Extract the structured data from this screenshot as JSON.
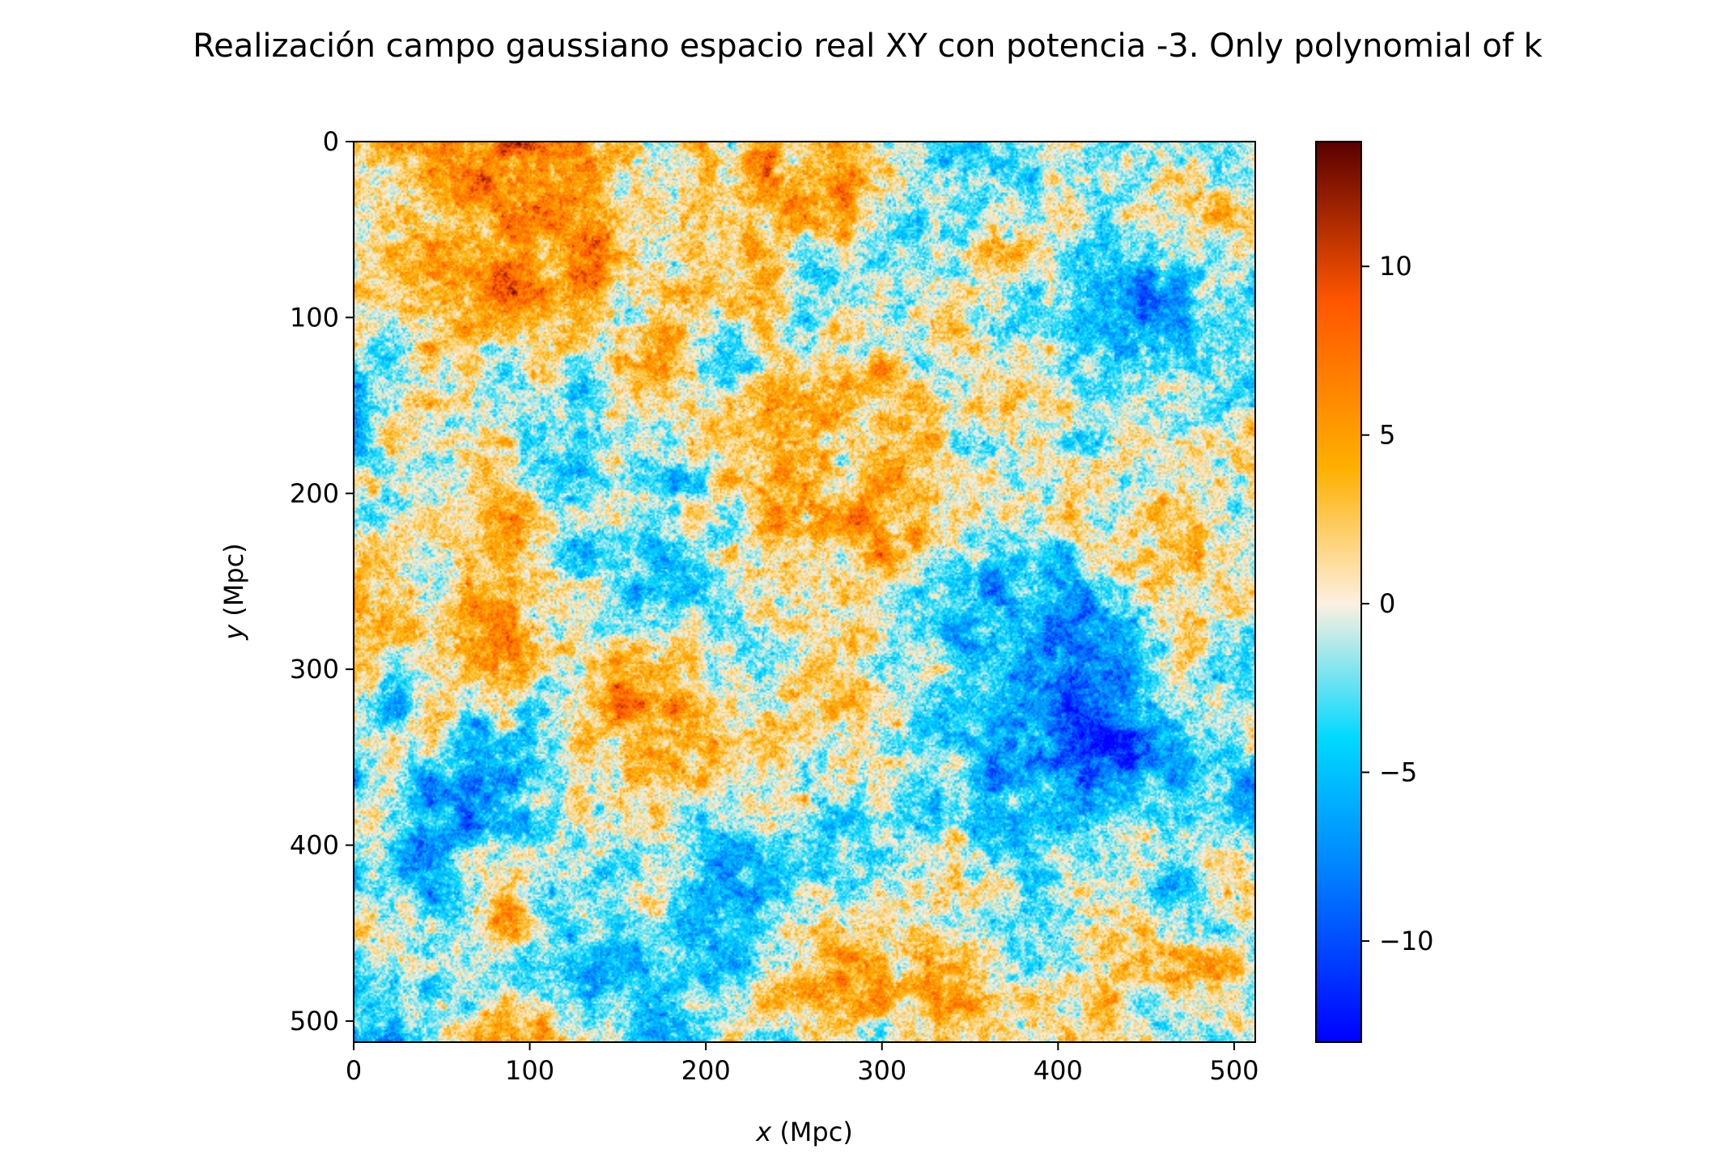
{
  "chart_data": {
    "type": "heatmap",
    "title": "Realización campo gaussiano espacio real XY con potencia -3. Only polynomial of k",
    "xlabel": {
      "var": "x",
      "unit": " (Mpc)"
    },
    "ylabel": {
      "var": "y",
      "unit": " (Mpc)"
    },
    "xlim": [
      0,
      512
    ],
    "ylim": [
      512,
      0
    ],
    "x_ticks": [
      0,
      100,
      200,
      300,
      400,
      500
    ],
    "x_tick_labels": [
      "0",
      "100",
      "200",
      "300",
      "400",
      "500"
    ],
    "y_ticks": [
      0,
      100,
      200,
      300,
      400,
      500
    ],
    "y_tick_labels": [
      "0",
      "100",
      "200",
      "300",
      "400",
      "500"
    ],
    "y_inverted": true,
    "grid": false,
    "colorbar": {
      "range": [
        -13,
        13.7
      ],
      "ticks": [
        10,
        5,
        0,
        -5,
        -10
      ],
      "tick_labels": [
        "10",
        "5",
        "0",
        "−5",
        "−10"
      ],
      "position": "right"
    },
    "colormap": {
      "stops": [
        "#0000ff",
        "#0080ff",
        "#00d9ff",
        "#fdf0e0",
        "#ffb000",
        "#ff5500",
        "#5a0000"
      ],
      "stop_values": [
        -13,
        -8,
        -4,
        0,
        4,
        9,
        13.7
      ]
    },
    "field_summary": {
      "description_values": "random Gaussian field, approx. range -13 to 13.7",
      "structures": [
        {
          "kind": "cold",
          "x": 400,
          "y": 330,
          "amplitude": -7.5,
          "sigma": 55
        },
        {
          "kind": "cold",
          "x": 440,
          "y": 120,
          "amplitude": -5.5,
          "sigma": 45
        },
        {
          "kind": "cold",
          "x": 360,
          "y": 260,
          "amplitude": -4.5,
          "sigma": 35
        },
        {
          "kind": "cold",
          "x": 190,
          "y": 460,
          "amplitude": -4.5,
          "sigma": 45
        },
        {
          "kind": "cold",
          "x": 40,
          "y": 390,
          "amplitude": -4.0,
          "sigma": 40
        },
        {
          "kind": "cold",
          "x": 110,
          "y": 170,
          "amplitude": -3.0,
          "sigma": 45
        },
        {
          "kind": "hot",
          "x": 80,
          "y": 70,
          "amplitude": 4.5,
          "sigma": 40
        },
        {
          "kind": "hot",
          "x": 190,
          "y": 180,
          "amplitude": 5.0,
          "sigma": 30
        },
        {
          "kind": "hot",
          "x": 240,
          "y": 50,
          "amplitude": 4.0,
          "sigma": 35
        },
        {
          "kind": "hot",
          "x": 280,
          "y": 470,
          "amplitude": 5.0,
          "sigma": 30
        },
        {
          "kind": "hot",
          "x": 260,
          "y": 340,
          "amplitude": 3.5,
          "sigma": 30
        },
        {
          "kind": "hot",
          "x": 90,
          "y": 250,
          "amplitude": 3.5,
          "sigma": 35
        },
        {
          "kind": "hot",
          "x": 500,
          "y": 50,
          "amplitude": 3.0,
          "sigma": 25
        }
      ]
    }
  }
}
